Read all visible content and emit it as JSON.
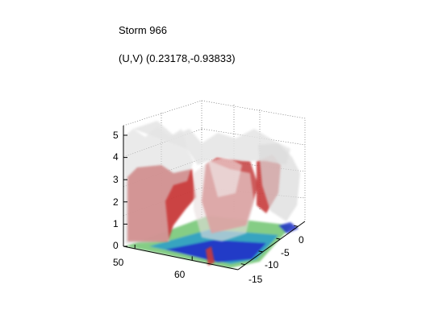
{
  "chart_data": {
    "type": "volume-isosurface-3d",
    "title": "Storm 966",
    "subtitle": "(U,V) (0.23178,-0.93833)",
    "axes": {
      "z_ticks": [
        "0",
        "1",
        "2",
        "3",
        "4",
        "5"
      ],
      "x_ticks": [
        "50",
        "60"
      ],
      "y_ticks": [
        "0",
        "-5",
        "-10",
        "-15"
      ],
      "zlim": [
        0,
        5.5
      ],
      "xlim": [
        48,
        68
      ],
      "ylim": [
        -17,
        2
      ],
      "grid": true
    },
    "colors": {
      "isosurface_outer": "#d8d8d8",
      "isosurface_inner": "#d03a3a",
      "floor_high": "#2030c8",
      "floor_mid": "#30a0c8",
      "floor_low": "#78c878",
      "grid_line": "#555555"
    }
  }
}
